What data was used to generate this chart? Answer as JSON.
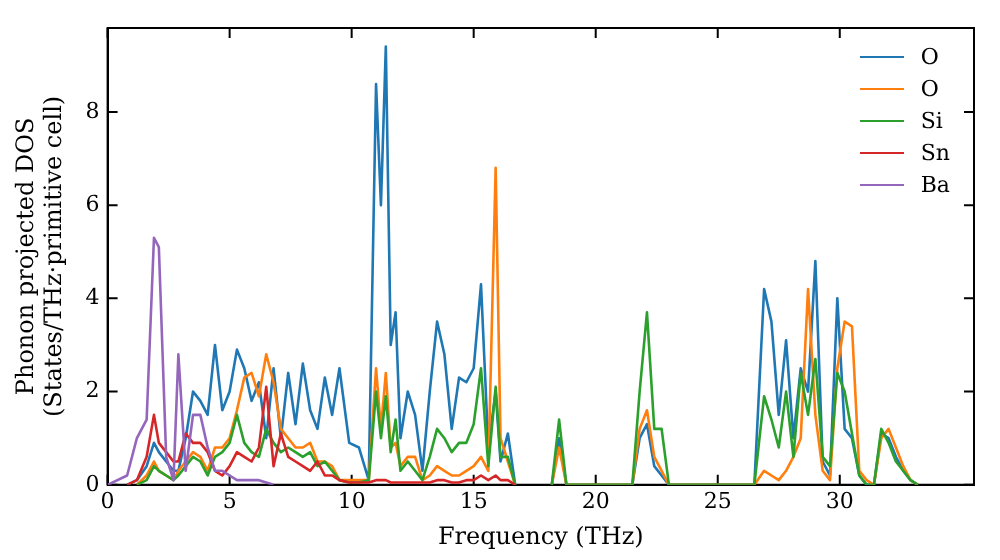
{
  "chart_data": {
    "type": "line",
    "xlabel": "Frequency (THz)",
    "ylabel": "Phonon projected DOS\n(States/THz·primitive cell)",
    "xlim": [
      0,
      35.5
    ],
    "xticks": [
      0,
      5,
      10,
      15,
      20,
      25,
      30
    ],
    "ylim": [
      0,
      9.8
    ],
    "yticks": [
      0,
      2,
      4,
      6,
      8
    ],
    "grid": false,
    "legend": "top right",
    "marker": "none",
    "line_style": "solid",
    "x": [
      0,
      0.8,
      1.2,
      1.6,
      1.9,
      2.1,
      2.4,
      2.7,
      2.9,
      3.2,
      3.5,
      3.8,
      4.1,
      4.4,
      4.7,
      5.0,
      5.3,
      5.6,
      5.9,
      6.2,
      6.5,
      6.8,
      7.1,
      7.4,
      7.7,
      8.0,
      8.3,
      8.6,
      8.9,
      9.2,
      9.5,
      9.9,
      10.3,
      10.7,
      11.0,
      11.2,
      11.4,
      11.6,
      11.8,
      12.0,
      12.3,
      12.6,
      12.9,
      13.2,
      13.5,
      13.8,
      14.1,
      14.4,
      14.7,
      15.0,
      15.3,
      15.6,
      15.9,
      16.1,
      16.4,
      16.7,
      17.0,
      18.2,
      18.5,
      18.8,
      21.5,
      21.8,
      22.1,
      22.4,
      22.7,
      23.0,
      26.5,
      26.9,
      27.2,
      27.5,
      27.8,
      28.1,
      28.4,
      28.7,
      29.0,
      29.3,
      29.6,
      29.9,
      30.2,
      30.5,
      30.8,
      31.1,
      31.4,
      31.7,
      32.0,
      32.3,
      32.6,
      32.9,
      33.2
    ],
    "series": [
      {
        "name": "O",
        "color": "#1f77b4",
        "values": [
          null,
          0,
          0.1,
          0.4,
          0.9,
          0.7,
          0.5,
          0.3,
          0.3,
          1.0,
          2.0,
          1.8,
          1.5,
          3.0,
          1.6,
          2.0,
          2.9,
          2.5,
          1.8,
          2.2,
          1.0,
          2.5,
          1.0,
          2.4,
          1.3,
          2.6,
          1.6,
          1.2,
          2.3,
          1.5,
          2.5,
          0.9,
          0.8,
          0.1,
          8.6,
          6.0,
          9.4,
          3.0,
          3.7,
          1.0,
          2.0,
          1.5,
          0.3,
          2.0,
          3.5,
          2.8,
          1.2,
          2.3,
          2.2,
          2.5,
          4.3,
          0.8,
          2.0,
          0.5,
          1.1,
          0,
          null,
          0,
          1.0,
          0,
          0,
          1.0,
          1.3,
          0.4,
          0.2,
          0,
          0,
          4.2,
          3.5,
          1.5,
          3.1,
          1.0,
          2.5,
          2.0,
          4.8,
          0.5,
          0.2,
          4.0,
          1.2,
          1.0,
          0.2,
          0,
          0,
          1.1,
          1.0,
          0.6,
          0.3,
          0.1,
          0
        ]
      },
      {
        "name": "O",
        "color": "#ff7f0e",
        "values": [
          null,
          null,
          0,
          0.2,
          0.5,
          0.3,
          0.2,
          0.1,
          0.3,
          0.5,
          0.7,
          0.6,
          0.3,
          0.8,
          0.8,
          1.0,
          1.6,
          2.3,
          2.4,
          1.9,
          2.8,
          2.2,
          1.2,
          1.0,
          0.8,
          0.8,
          0.9,
          0.5,
          0.5,
          0.4,
          0.1,
          0.1,
          0.1,
          0.1,
          2.5,
          1.2,
          2.4,
          0.8,
          0.9,
          0.4,
          0.6,
          0.6,
          0.1,
          0.2,
          0.4,
          0.3,
          0.2,
          0.2,
          0.3,
          0.4,
          0.6,
          0.3,
          6.8,
          1.0,
          0.5,
          0,
          null,
          0,
          0.8,
          0,
          0,
          1.2,
          1.6,
          0.6,
          0.3,
          0,
          0,
          0.3,
          0.2,
          0.1,
          0.3,
          0.6,
          1.0,
          4.2,
          1.5,
          0.3,
          0.1,
          2.5,
          3.5,
          3.4,
          0.3,
          0.1,
          0,
          1.0,
          1.2,
          0.8,
          0.4,
          0.1,
          0
        ]
      },
      {
        "name": "Si",
        "color": "#2ca02c",
        "values": [
          null,
          null,
          0,
          0.1,
          0.4,
          0.3,
          0.2,
          0.1,
          0.2,
          0.4,
          0.6,
          0.5,
          0.2,
          0.6,
          0.7,
          0.9,
          1.5,
          0.9,
          0.7,
          0.6,
          1.2,
          0.9,
          0.7,
          0.8,
          0.7,
          0.6,
          0.7,
          0.4,
          0.5,
          0.3,
          0.1,
          0.05,
          0.05,
          0.1,
          2.0,
          1.0,
          1.9,
          0.7,
          1.4,
          0.3,
          0.5,
          0.3,
          0.1,
          0.6,
          1.2,
          1.0,
          0.7,
          0.9,
          0.9,
          1.3,
          2.5,
          0.4,
          2.1,
          0.6,
          0.6,
          0,
          null,
          0,
          1.4,
          0,
          0,
          2.0,
          3.7,
          1.2,
          1.2,
          0,
          0,
          1.9,
          1.4,
          0.8,
          2.0,
          0.6,
          2.4,
          1.5,
          2.7,
          0.6,
          0.4,
          2.4,
          2.0,
          1.1,
          0.2,
          0,
          0,
          1.2,
          0.9,
          0.5,
          0.3,
          0.1,
          0
        ]
      },
      {
        "name": "Sn",
        "color": "#d62728",
        "values": [
          null,
          0,
          0.1,
          0.6,
          1.5,
          0.9,
          0.7,
          0.5,
          0.5,
          1.1,
          0.9,
          0.9,
          0.7,
          0.3,
          0.2,
          0.4,
          0.7,
          0.6,
          0.5,
          0.8,
          2.1,
          0.4,
          1.1,
          0.6,
          0.5,
          0.4,
          0.3,
          0.5,
          0.2,
          0.2,
          0.1,
          0.05,
          0.05,
          0.05,
          0.1,
          0.1,
          0.1,
          0.05,
          0.05,
          0.05,
          0.05,
          0.05,
          0.05,
          0.05,
          0.1,
          0.1,
          0.05,
          0.05,
          0.1,
          0.1,
          0.2,
          0.1,
          0.2,
          0.1,
          0.1,
          0,
          null,
          null,
          null,
          null,
          null,
          null,
          null,
          null,
          null,
          null,
          null,
          null,
          null,
          null,
          null,
          null,
          null,
          null,
          null,
          null,
          null,
          null,
          null,
          null,
          null,
          null,
          null,
          null,
          null,
          null,
          null,
          null,
          null
        ]
      },
      {
        "name": "Ba",
        "color": "#9467bd",
        "values": [
          0,
          0.2,
          1.0,
          1.4,
          5.3,
          5.1,
          0.6,
          0.1,
          2.8,
          0.3,
          1.5,
          1.5,
          0.8,
          0.3,
          0.3,
          0.2,
          0.1,
          0.1,
          0.1,
          0.1,
          0.05,
          0,
          null,
          null,
          null,
          null,
          null,
          null,
          null,
          null,
          null,
          null,
          null,
          null,
          null,
          null,
          null,
          null,
          null,
          null,
          null,
          null,
          null,
          null,
          null,
          null,
          null,
          null,
          null,
          null,
          null,
          null,
          null,
          null,
          null,
          null,
          null,
          null,
          null,
          null,
          null,
          null,
          null,
          null,
          null,
          null,
          null,
          null,
          null,
          null,
          null,
          null,
          null,
          null,
          null,
          null,
          null,
          null,
          null,
          null,
          null,
          null,
          null,
          null,
          null,
          null,
          null,
          null,
          null
        ]
      }
    ]
  }
}
